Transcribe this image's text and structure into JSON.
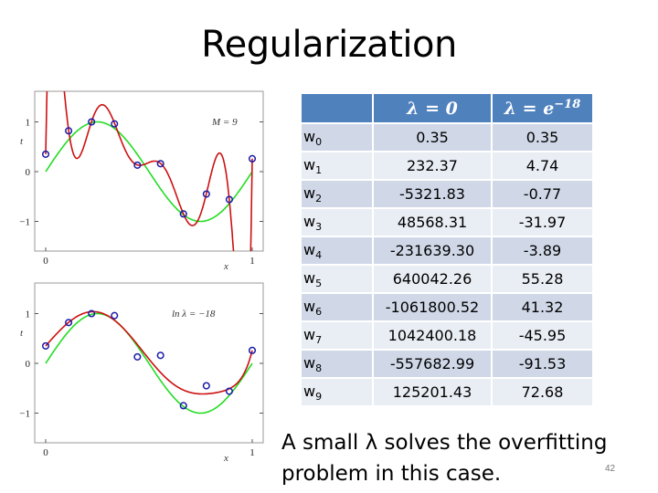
{
  "slide": {
    "title": "Regularization",
    "caption": "A small λ solves the overfitting problem in this case.",
    "page_number": "42"
  },
  "table": {
    "header": {
      "col1_lambda": "λ = 0",
      "col2_lambda": "λ = e",
      "col2_exp": "−18"
    },
    "rows": [
      {
        "w": "w",
        "sub": "0",
        "a": "0.35",
        "b": "0.35"
      },
      {
        "w": "w",
        "sub": "1",
        "a": "232.37",
        "b": "4.74"
      },
      {
        "w": "w",
        "sub": "2",
        "a": "-5321.83",
        "b": "-0.77"
      },
      {
        "w": "w",
        "sub": "3",
        "a": "48568.31",
        "b": "-31.97"
      },
      {
        "w": "w",
        "sub": "4",
        "a": "-231639.30",
        "b": "-3.89"
      },
      {
        "w": "w",
        "sub": "5",
        "a": "640042.26",
        "b": "55.28"
      },
      {
        "w": "w",
        "sub": "6",
        "a": "-1061800.52",
        "b": "41.32"
      },
      {
        "w": "w",
        "sub": "7",
        "a": "1042400.18",
        "b": "-45.95"
      },
      {
        "w": "w",
        "sub": "8",
        "a": "-557682.99",
        "b": "-91.53"
      },
      {
        "w": "w",
        "sub": "9",
        "a": "125201.43",
        "b": "72.68"
      }
    ]
  },
  "plots": [
    {
      "annotation": "M = 9",
      "xlabel": "x",
      "ylabel": "t",
      "xticks": [
        "0",
        "1"
      ],
      "yticks": [
        "1",
        "0",
        "−1"
      ],
      "fit": "lambda0"
    },
    {
      "annotation": "ln λ = −18",
      "xlabel": "x",
      "ylabel": "t",
      "xticks": [
        "0",
        "1"
      ],
      "yticks": [
        "1",
        "0",
        "−1"
      ],
      "fit": "lambdaSmall"
    }
  ],
  "chart_data": {
    "type": "scatter",
    "x": [
      0,
      0.111,
      0.222,
      0.333,
      0.444,
      0.556,
      0.667,
      0.778,
      0.889,
      1.0
    ],
    "t": [
      0.35,
      0.82,
      1.0,
      0.96,
      0.13,
      0.16,
      -0.85,
      -0.45,
      -0.56,
      0.26
    ],
    "xlim": [
      0,
      1
    ],
    "ylim": [
      -1.5,
      1.5
    ],
    "true_function": "sin(2πx)",
    "colors": {
      "points": "#1a1aa8",
      "fit": "#cc1111",
      "truth": "#22dd22"
    }
  }
}
